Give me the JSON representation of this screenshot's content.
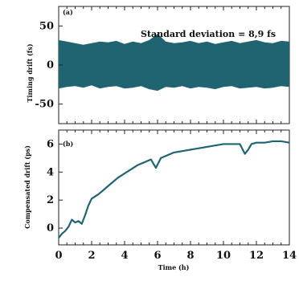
{
  "chart_data": [
    {
      "panel": "(a)",
      "type": "area",
      "ylabel": "Timing drift (fs)",
      "xlim": [
        0,
        14
      ],
      "ylim": [
        -75,
        75
      ],
      "yticks": [
        50,
        0,
        -50
      ],
      "annotation": "Standard deviation = 8,9 fs",
      "series": [
        {
          "values_note": "noise band, upper/lower envelope",
          "x": [
            0,
            0.5,
            1,
            1.5,
            2,
            2.5,
            3,
            3.5,
            4,
            4.5,
            5,
            5.5,
            6,
            6.5,
            7,
            7.5,
            8,
            8.5,
            9,
            9.5,
            10,
            10.5,
            11,
            11.5,
            12,
            12.5,
            13,
            13.5,
            14
          ],
          "upper": [
            32,
            30,
            28,
            26,
            28,
            30,
            29,
            31,
            27,
            30,
            28,
            32,
            40,
            30,
            28,
            29,
            31,
            28,
            30,
            27,
            29,
            31,
            28,
            30,
            32,
            29,
            28,
            31,
            30
          ],
          "lower": [
            -30,
            -28,
            -27,
            -29,
            -26,
            -30,
            -28,
            -27,
            -30,
            -29,
            -27,
            -31,
            -33,
            -28,
            -29,
            -27,
            -30,
            -28,
            -29,
            -31,
            -28,
            -27,
            -30,
            -29,
            -28,
            -30,
            -29,
            -27,
            -28
          ]
        }
      ],
      "color": "#1f6470"
    },
    {
      "panel": "(b)",
      "type": "line",
      "xlabel": "Time (h)",
      "ylabel": "Compensated drift (ps)",
      "xlim": [
        0,
        14
      ],
      "ylim": [
        -1.2,
        7
      ],
      "xticks": [
        0,
        2,
        4,
        6,
        8,
        10,
        12,
        14
      ],
      "yticks": [
        6,
        4,
        2,
        0
      ],
      "series": [
        {
          "x": [
            0,
            0.2,
            0.4,
            0.6,
            0.8,
            1.0,
            1.2,
            1.4,
            1.6,
            1.8,
            2.0,
            2.4,
            2.8,
            3.2,
            3.6,
            4.0,
            4.4,
            4.8,
            5.2,
            5.6,
            5.9,
            6.2,
            6.6,
            7.0,
            7.5,
            8.0,
            8.5,
            9.0,
            9.5,
            10.0,
            10.5,
            11.0,
            11.3,
            11.5,
            11.7,
            12.0,
            12.5,
            13.0,
            13.5,
            14.0
          ],
          "y": [
            -0.7,
            -0.4,
            -0.2,
            0.1,
            0.6,
            0.4,
            0.5,
            0.3,
            0.9,
            1.6,
            2.1,
            2.4,
            2.8,
            3.2,
            3.6,
            3.9,
            4.2,
            4.5,
            4.7,
            4.9,
            4.3,
            5.0,
            5.2,
            5.4,
            5.5,
            5.6,
            5.7,
            5.8,
            5.9,
            6.0,
            6.0,
            6.0,
            5.3,
            5.6,
            6.0,
            6.1,
            6.1,
            6.2,
            6.2,
            6.1
          ]
        }
      ],
      "color": "#1f6470"
    }
  ]
}
